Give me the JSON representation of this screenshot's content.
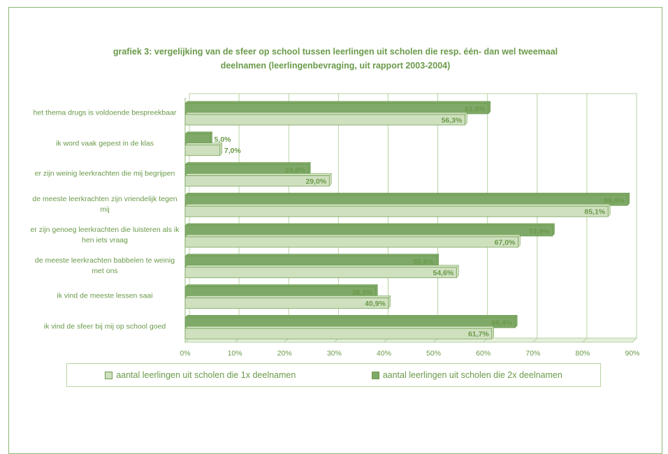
{
  "chart_data": {
    "type": "bar",
    "orientation": "horizontal",
    "title": "grafiek 3: vergelijking van de sfeer op school tussen leerlingen uit scholen die resp. één- dan wel tweemaal deelnamen (leerlingenbevraging, uit rapport 2003-2004)",
    "categories": [
      "het thema drugs is voldoende bespreekbaar",
      "ik word vaak gepest in de klas",
      "er zijn weinig leerkrachten die mij begrijpen",
      "de meeste leerkrachten zijn vriendelijk tegen mij",
      "er zijn genoeg leerkrachten die luisteren als ik hen iets vraag",
      "de meeste leerkrachten babbelen te weinig met ons",
      "ik vind de meeste lessen saai",
      "ik vind de sfeer bij mij op school goed"
    ],
    "series": [
      {
        "name": "aantal leerlingen uit scholen die 1x deelnamen",
        "color": "#cfe0bf",
        "values": [
          56.3,
          7.0,
          29.0,
          85.1,
          67.0,
          54.6,
          40.9,
          61.7
        ],
        "value_labels": [
          "56,3%",
          "7,0%",
          "29,0%",
          "85,1%",
          "67,0%",
          "54,6%",
          "40,9%",
          "61,7%"
        ]
      },
      {
        "name": "aantal leerlingen uit scholen die 2x deelnamen",
        "color": "#7fa968",
        "values": [
          61.0,
          5.0,
          24.8,
          89.0,
          73.9,
          50.6,
          38.3,
          66.4
        ],
        "value_labels": [
          "61,0%",
          "5,0%",
          "24,8%",
          "89,0%",
          "73,9%",
          "50,6%",
          "38,3%",
          "66,4%"
        ]
      }
    ],
    "xlim": [
      0,
      90
    ],
    "xticks": [
      {
        "value": 0,
        "label": "0%"
      },
      {
        "value": 10,
        "label": "10%"
      },
      {
        "value": 20,
        "label": "20%"
      },
      {
        "value": 30,
        "label": "30%"
      },
      {
        "value": 40,
        "label": "40%"
      },
      {
        "value": 50,
        "label": "50%"
      },
      {
        "value": 60,
        "label": "60%"
      },
      {
        "value": 70,
        "label": "70%"
      },
      {
        "value": 80,
        "label": "80%"
      },
      {
        "value": 90,
        "label": "90%"
      }
    ],
    "grid": true,
    "legend": "bottom"
  }
}
